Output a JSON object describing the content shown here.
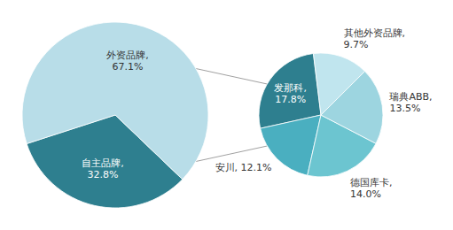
{
  "chart_data": [
    {
      "type": "pie",
      "values": [
        32.8,
        67.1
      ],
      "colors": [
        "#2e7f8f",
        "#b8dde8"
      ],
      "value_labels": [
        "自主品牌,\n32.8%",
        "外资品牌,\n67.1%"
      ],
      "data_labels": true
    },
    {
      "type": "pie",
      "values": [
        17.8,
        12.1,
        14.0,
        13.5,
        9.7
      ],
      "colors": [
        "#2e7f8f",
        "#4aafc0",
        "#6cc5d0",
        "#9dd5e0",
        "#c0e5ee"
      ],
      "value_labels": [
        "发那科,\n17.8%",
        "安川, 12.1%",
        "德国库卡,\n14.0%",
        "瑞典ABB,\n13.5%",
        "其他外资品牌,\n9.7%"
      ],
      "data_labels": true
    }
  ]
}
